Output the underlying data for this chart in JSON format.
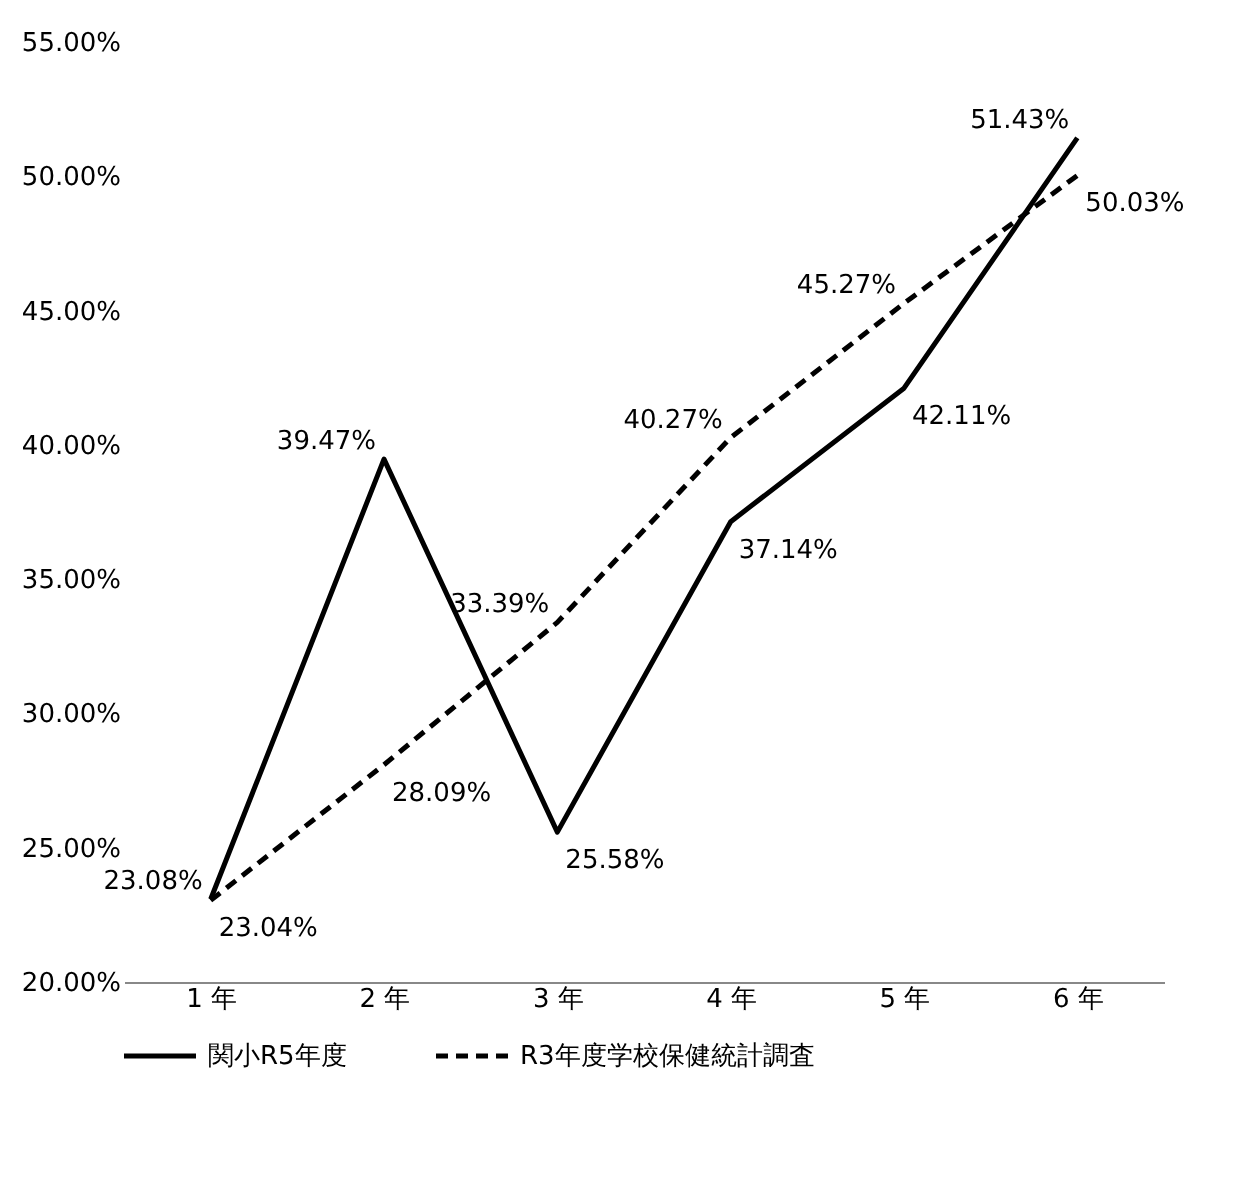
{
  "chart_data": {
    "type": "line",
    "categories": [
      "1 年",
      "2 年",
      "3 年",
      "4 年",
      "5 年",
      "6 年"
    ],
    "series": [
      {
        "name": "関小R5年度",
        "color": "#000000",
        "line_style": "solid",
        "values": [
          23.08,
          39.47,
          25.58,
          37.14,
          42.11,
          51.43
        ],
        "value_labels": [
          "23.08%",
          "39.47%",
          "25.58%",
          "37.14%",
          "42.11%",
          "51.43%"
        ]
      },
      {
        "name": "R3年度学校保健統計調査",
        "color": "#000000",
        "line_style": "dashed",
        "values": [
          23.04,
          28.09,
          33.39,
          40.27,
          45.27,
          50.03
        ],
        "value_labels": [
          "23.04%",
          "28.09%",
          "33.39%",
          "40.27%",
          "45.27%",
          "50.03%"
        ]
      }
    ],
    "ylim": [
      20,
      55
    ],
    "yticks": [
      {
        "value": 20,
        "label": "20.00%"
      },
      {
        "value": 25,
        "label": "25.00%"
      },
      {
        "value": 30,
        "label": "30.00%"
      },
      {
        "value": 35,
        "label": "35.00%"
      },
      {
        "value": 40,
        "label": "40.00%"
      },
      {
        "value": 45,
        "label": "45.00%"
      },
      {
        "value": 50,
        "label": "50.00%"
      },
      {
        "value": 55,
        "label": "55.00%"
      }
    ],
    "grid": false,
    "legend": "bottom",
    "marker": "none"
  }
}
